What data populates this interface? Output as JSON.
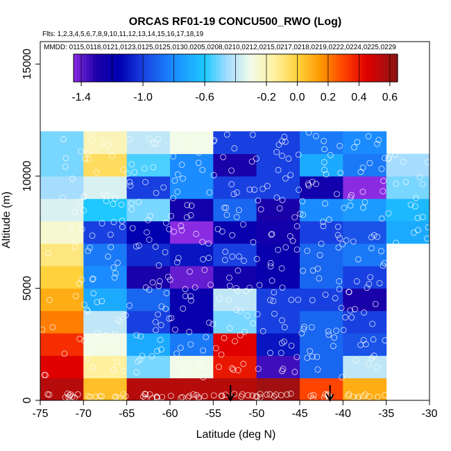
{
  "chart_data": {
    "type": "heatmap",
    "title": "ORCAS RF01-19 CONCU500_RWO (Log)",
    "flights_text": "Flts: 1,2,3,4,5,6,7,8,9,10,11,12,13,14,15,16,17,18,19",
    "mmdd_text": "MMDD: 0115,0118,0121,0123,0125,0125,0130,0205,0208,0210,0212,0215,0217,0218,0219,0222,0224,0225,0229",
    "xlabel": "Latitude (deg N)",
    "ylabel": "Altitude (m)",
    "xlim": [
      -75,
      -30
    ],
    "ylim": [
      0,
      16000
    ],
    "xticks": [
      -75,
      -70,
      -65,
      -60,
      -55,
      -50,
      -45,
      -40,
      -35,
      -30
    ],
    "yticks": [
      0,
      5000,
      10000,
      15000
    ],
    "colorbar": {
      "min": -1.45,
      "max": 0.65,
      "ticks": [
        -1.4,
        -1.0,
        -0.6,
        -0.2,
        0.0,
        0.2,
        0.4,
        0.6
      ],
      "tick_labels": [
        "-1.4",
        "-1.0",
        "-0.6",
        "-0.2",
        "0.0",
        "0.2",
        "0.4",
        "0.6"
      ],
      "stops": [
        [
          -1.45,
          "#8a2be2"
        ],
        [
          -1.3,
          "#1a00a8"
        ],
        [
          -1.15,
          "#0000b0"
        ],
        [
          -1.0,
          "#1840e0"
        ],
        [
          -0.8,
          "#1a8cff"
        ],
        [
          -0.6,
          "#1ec8ff"
        ],
        [
          -0.45,
          "#a6ddff"
        ],
        [
          -0.3,
          "#f2fbe8"
        ],
        [
          -0.15,
          "#fff1a0"
        ],
        [
          0.0,
          "#ffd23c"
        ],
        [
          0.15,
          "#ff9a00"
        ],
        [
          0.3,
          "#ff4400"
        ],
        [
          0.45,
          "#e00000"
        ],
        [
          0.65,
          "#8b1515"
        ]
      ]
    },
    "x_edges": [
      -75,
      -70,
      -65,
      -60,
      -55,
      -50,
      -45,
      -40,
      -35,
      -30
    ],
    "y_edges": [
      0,
      1000,
      2000,
      3000,
      4000,
      5000,
      6000,
      7000,
      8000,
      9000,
      10000,
      11000,
      12000
    ],
    "cells": [
      [
        0.55,
        0.05,
        0.55,
        0.55,
        0.55,
        0.6,
        0.3,
        0.1,
        null
      ],
      [
        0.45,
        -0.15,
        -0.5,
        -0.3,
        0.4,
        -1.35,
        -0.9,
        -0.4,
        null
      ],
      [
        0.35,
        -0.3,
        -0.7,
        -0.85,
        0.45,
        -1.1,
        -0.9,
        -0.95,
        null
      ],
      [
        0.2,
        -0.4,
        -1.0,
        -1.2,
        -0.5,
        -1.0,
        -0.9,
        -1.0,
        null
      ],
      [
        0.1,
        -0.7,
        -0.9,
        -1.2,
        -0.4,
        -1.0,
        -1.0,
        -1.3,
        null
      ],
      [
        0.0,
        -0.8,
        -1.3,
        -1.4,
        -1.25,
        -1.2,
        -0.9,
        -1.0,
        null
      ],
      [
        -0.1,
        -0.85,
        -1.05,
        -1.1,
        -1.0,
        -1.2,
        -0.9,
        -0.85,
        null
      ],
      [
        -0.25,
        -1.0,
        -1.15,
        -1.45,
        -1.2,
        -1.25,
        -1.0,
        -0.95,
        -0.7
      ],
      [
        -0.35,
        -0.6,
        -0.5,
        -1.25,
        -0.9,
        -1.3,
        -0.8,
        -0.75,
        -0.65
      ],
      [
        -0.45,
        -0.35,
        -1.0,
        -0.8,
        -1.0,
        -1.0,
        -1.25,
        -1.45,
        -0.5
      ],
      [
        -0.5,
        -0.05,
        -0.55,
        -0.8,
        -1.3,
        -1.0,
        -0.7,
        -0.85,
        -0.45
      ],
      [
        -0.5,
        -0.2,
        -0.4,
        -0.3,
        -1.0,
        -1.0,
        -0.85,
        -0.8,
        null
      ]
    ],
    "arrows_x": [
      -53,
      -41.5
    ]
  }
}
